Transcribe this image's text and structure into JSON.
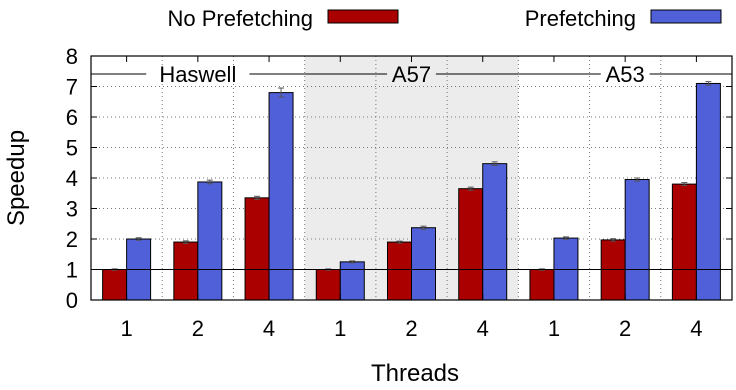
{
  "chart_data": {
    "type": "bar",
    "xlabel": "Threads",
    "ylabel": "Speedup",
    "ylim": [
      0,
      8
    ],
    "yticks": [
      "0",
      "1",
      "2",
      "3",
      "4",
      "5",
      "6",
      "7",
      "8"
    ],
    "grid": "dotted",
    "legend_position": "top",
    "reference_line": 1,
    "groups": [
      {
        "name": "Haswell",
        "shaded": false,
        "categories": [
          "1",
          "2",
          "4"
        ]
      },
      {
        "name": "A57",
        "shaded": true,
        "categories": [
          "1",
          "2",
          "4"
        ]
      },
      {
        "name": "A53",
        "shaded": false,
        "categories": [
          "1",
          "2",
          "4"
        ]
      }
    ],
    "series": [
      {
        "name": "No Prefetching",
        "color": "#aa0000",
        "values": [
          1.0,
          1.9,
          3.35,
          1.0,
          1.9,
          3.65,
          1.0,
          1.97,
          3.8
        ],
        "errors": [
          0.02,
          0.04,
          0.05,
          0.02,
          0.03,
          0.05,
          0.02,
          0.04,
          0.05
        ]
      },
      {
        "name": "Prefetching",
        "color": "#5060d8",
        "values": [
          2.0,
          3.87,
          6.8,
          1.25,
          2.37,
          4.47,
          2.03,
          3.95,
          7.1
        ],
        "errors": [
          0.04,
          0.06,
          0.15,
          0.03,
          0.05,
          0.06,
          0.04,
          0.05,
          0.06
        ]
      }
    ]
  }
}
